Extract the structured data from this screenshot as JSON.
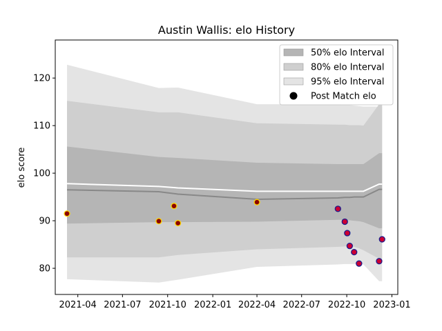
{
  "chart_data": {
    "type": "line",
    "title": "Austin Wallis: elo History",
    "xlabel": "",
    "ylabel": "elo score",
    "x_ticks": [
      "2021-04",
      "2021-07",
      "2021-10",
      "2022-01",
      "2022-04",
      "2022-07",
      "2022-10",
      "2023-01"
    ],
    "y_ticks": [
      80,
      90,
      100,
      110,
      120
    ],
    "xlim": [
      "2021-02-14",
      "2023-01-13"
    ],
    "ylim": [
      74.5,
      128
    ],
    "legend_position": "top-right",
    "band_dates": [
      "2021-03-10",
      "2021-09-13",
      "2021-10-22",
      "2022-04-01",
      "2022-09-13",
      "2022-09-27",
      "2022-10-07",
      "2022-10-16",
      "2022-10-26",
      "2022-11-04",
      "2022-12-06",
      "2022-12-12"
    ],
    "mean": [
      96.5,
      96.1,
      95.6,
      94.5,
      94.8,
      94.9,
      94.9,
      95.0,
      95.0,
      95.0,
      96.6,
      96.6
    ],
    "expected": [
      97.8,
      97.2,
      96.9,
      96.2,
      96.2,
      96.2,
      96.2,
      96.2,
      96.2,
      96.2,
      97.7,
      97.7
    ],
    "bands": [
      {
        "name": "95% elo Interval",
        "color": "#e4e4e4",
        "upper": [
          122.8,
          117.9,
          118.0,
          114.5,
          114.5,
          114.4,
          114.3,
          114.2,
          114.1,
          114.0,
          114.0,
          114.0
        ],
        "lower": [
          77.7,
          77.0,
          77.6,
          80.3,
          80.8,
          80.9,
          80.9,
          80.9,
          80.9,
          80.8,
          77.3,
          77.3
        ]
      },
      {
        "name": "80% elo Interval",
        "color": "#cfcfcf",
        "upper": [
          115.2,
          112.8,
          112.8,
          110.5,
          110.2,
          110.2,
          110.1,
          110.1,
          110.1,
          110.0,
          114.5,
          114.5
        ],
        "lower": [
          82.3,
          82.3,
          82.8,
          84.0,
          84.5,
          84.6,
          84.6,
          84.5,
          84.2,
          83.8,
          82.0,
          82.0
        ]
      },
      {
        "name": "50% elo Interval",
        "color": "#b5b5b5",
        "upper": [
          105.6,
          103.4,
          103.2,
          102.2,
          101.9,
          101.9,
          101.9,
          101.9,
          101.9,
          101.9,
          104.2,
          104.2
        ],
        "lower": [
          89.4,
          89.7,
          89.7,
          89.8,
          90.2,
          90.2,
          90.1,
          90.0,
          89.9,
          89.7,
          88.4,
          88.4
        ]
      }
    ],
    "legend": [
      "50% elo Interval",
      "80% elo Interval",
      "95% elo Interval",
      "Post Match elo"
    ],
    "points_series_name": "Post Match elo",
    "points": [
      {
        "date": "2021-03-10",
        "value": 91.5
      },
      {
        "date": "2021-09-13",
        "value": 89.9
      },
      {
        "date": "2021-10-14",
        "value": 93.1
      },
      {
        "date": "2021-10-22",
        "value": 89.5
      },
      {
        "date": "2022-04-01",
        "value": 93.9
      },
      {
        "date": "2022-09-13",
        "value": 92.5
      },
      {
        "date": "2022-09-27",
        "value": 89.8
      },
      {
        "date": "2022-10-02",
        "value": 87.4
      },
      {
        "date": "2022-10-07",
        "value": 84.7
      },
      {
        "date": "2022-10-16",
        "value": 83.4
      },
      {
        "date": "2022-10-26",
        "value": 81.0
      },
      {
        "date": "2022-12-06",
        "value": 81.5
      },
      {
        "date": "2022-12-12",
        "value": 86.1
      }
    ],
    "colors": {
      "mean_line": "#888888",
      "expected_line": "#ffffff",
      "point_fill_early": "#8b0000",
      "point_edge_early": "#ffd700",
      "point_fill_late": "#cc0033",
      "point_edge_late": "#1c1c8c",
      "legend_marker": "#000000"
    }
  }
}
